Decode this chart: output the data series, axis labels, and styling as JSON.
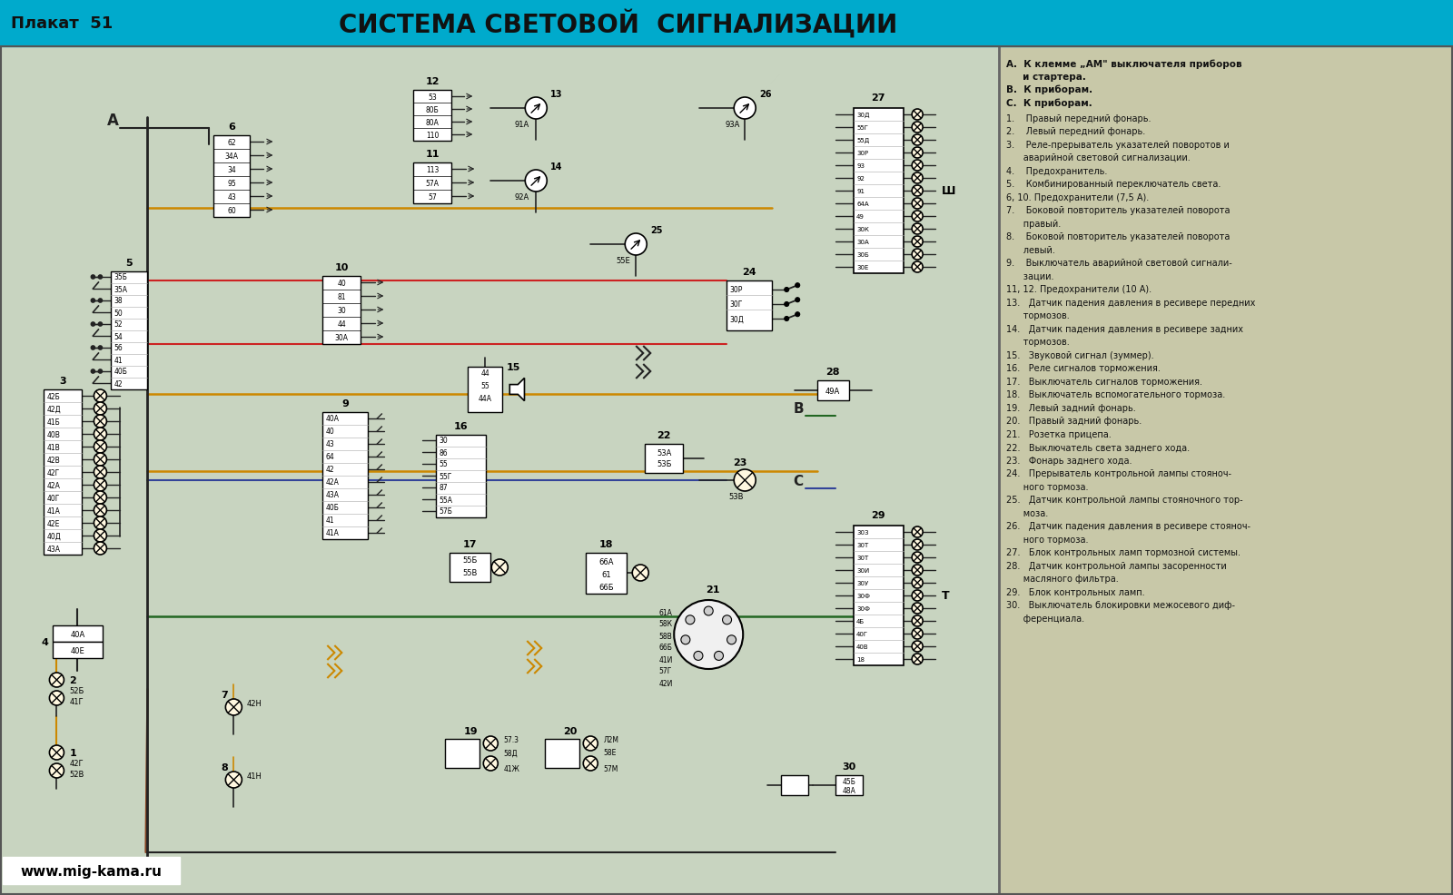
{
  "title": "СИСТЕМА СВЕТОВОЙ  СИГНАЛИЗАЦИИ",
  "subtitle_left": "Плакат  51",
  "watermark": "www.mig-kama.ru",
  "header_bg": "#00aacc",
  "header_text_color": "#111111",
  "diagram_bg": "#c8d8c0",
  "legend_bg": "#c8c8a0",
  "legend_header": [
    "А.  К клемме „АМ\" выключателя приборов",
    "     и стартера.",
    "В.  К приборам.",
    "С.  К приборам."
  ],
  "legend_items": [
    "1.    Правый передний фонарь.",
    "2.    Левый передний фонарь.",
    "3.    Реле-прерыватель указателей поворотов и",
    "      аварийной световой сигнализации.",
    "4.    Предохранитель.",
    "5.    Комбинированный переключатель света.",
    "6, 10. Предохранители (7,5 А).",
    "7.    Боковой повторитель указателей поворота",
    "      правый.",
    "8.    Боковой повторитель указателей поворота",
    "      левый.",
    "9.    Выключатель аварийной световой сигнали-",
    "      зации.",
    "11, 12. Предохранители (10 А).",
    "13.   Датчик падения давления в ресивере передних",
    "      тормозов.",
    "14.   Датчик падения давления в ресивере задних",
    "      тормозов.",
    "15.   Звуковой сигнал (зуммер).",
    "16.   Реле сигналов торможения.",
    "17.   Выключатель сигналов торможения.",
    "18.   Выключатель вспомогательного тормоза.",
    "19.   Левый задний фонарь.",
    "20.   Правый задний фонарь.",
    "21.   Розетка прицепа.",
    "22.   Выключатель света заднего хода.",
    "23.   Фонарь заднего хода.",
    "24.   Прерыватель контрольной лампы стояноч-",
    "      ного тормоза.",
    "25.   Датчик контрольной лампы стояночного тор-",
    "      моза.",
    "26.   Датчик падения давления в ресивере стояноч-",
    "      ного тормоза.",
    "27.   Блок контрольных ламп тормозной системы.",
    "28.   Датчик контрольной лампы засоренности",
    "      масляного фильтра.",
    "29.   Блок контрольных ламп.",
    "30.   Выключатель блокировки межосевого диф-",
    "      ференциала."
  ]
}
